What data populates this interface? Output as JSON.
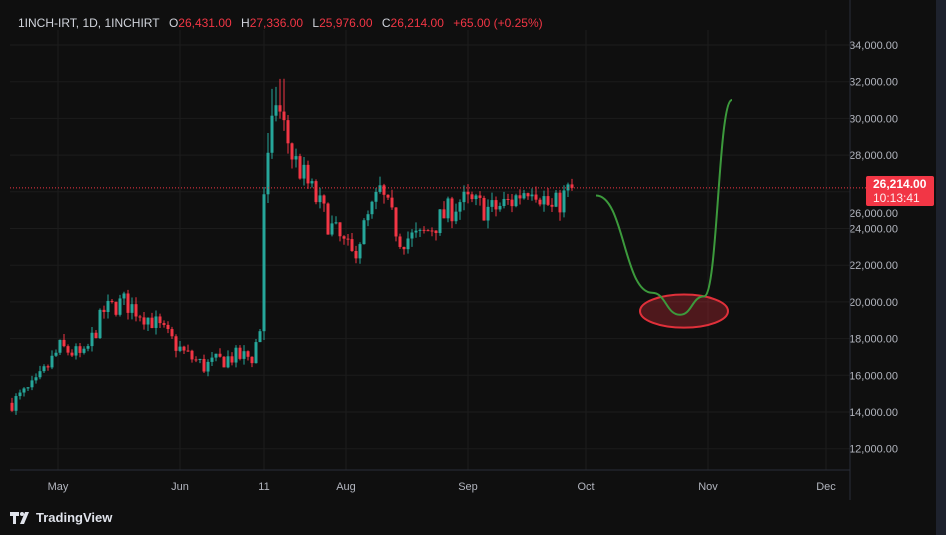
{
  "legend": {
    "symbol": "1INCH-IRT, 1D, 1INCHIRT",
    "open_label": "O",
    "open": "26,431.00",
    "high_label": "H",
    "high": "27,336.00",
    "low_label": "L",
    "low": "25,976.00",
    "close_label": "C",
    "close": "26,214.00",
    "change": "+65.00 (+0.25%)"
  },
  "price_tag": {
    "price": "26,214.00",
    "countdown": "10:13:41"
  },
  "brand": "TradingView",
  "colors": {
    "up": "#26a69a",
    "down": "#f23645",
    "curve": "#3c9a3c",
    "ellipse": "#e0303a"
  },
  "chart_data": {
    "type": "candlestick",
    "y_ticks": [
      "34,000.00",
      "32,000.00",
      "30,000.00",
      "28,000.00",
      "26,000.00",
      "24,000.00",
      "22,000.00",
      "20,000.00",
      "18,000.00",
      "16,000.00",
      "14,000.00",
      "12,000.00"
    ],
    "y_tick_values": [
      34000,
      32000,
      30000,
      28000,
      26000,
      24000,
      22000,
      20000,
      18000,
      16000,
      14000,
      12000
    ],
    "ylim": [
      11000,
      35000
    ],
    "x_ticks": [
      {
        "label": "May",
        "day": 11.5
      },
      {
        "label": "Jun",
        "day": 42
      },
      {
        "label": "11",
        "day": 63
      },
      {
        "label": "Aug",
        "day": 83.5
      },
      {
        "label": "Sep",
        "day": 114
      },
      {
        "label": "Oct",
        "day": 143.5
      },
      {
        "label": "Nov",
        "day": 174
      },
      {
        "label": "Dec",
        "day": 203.5
      }
    ],
    "xlim_days": [
      -0.5,
      209
    ],
    "last_price": 26214,
    "close_keypoints": [
      [
        0,
        14500
      ],
      [
        6,
        15500
      ],
      [
        12,
        17500
      ],
      [
        18,
        17000
      ],
      [
        23,
        19500
      ],
      [
        28,
        20000
      ],
      [
        35,
        19000
      ],
      [
        43,
        17200
      ],
      [
        48,
        16500
      ],
      [
        55,
        17000
      ],
      [
        60,
        17000
      ],
      [
        62,
        18500
      ],
      [
        63,
        26000
      ],
      [
        66,
        31000
      ],
      [
        70,
        28000
      ],
      [
        75,
        26000
      ],
      [
        80,
        24000
      ],
      [
        85,
        22500
      ],
      [
        90,
        25000
      ],
      [
        92,
        26000
      ],
      [
        97,
        23500
      ],
      [
        102,
        23500
      ],
      [
        107,
        24500
      ],
      [
        112,
        25500
      ],
      [
        120,
        25000
      ],
      [
        125,
        25500
      ],
      [
        130,
        26500
      ],
      [
        135,
        25000
      ],
      [
        140,
        26214
      ]
    ],
    "projection_curve": [
      [
        146,
        25800
      ],
      [
        160,
        20500
      ],
      [
        167,
        19300
      ],
      [
        173,
        20300
      ],
      [
        180,
        31000
      ]
    ],
    "highlight_ellipse": {
      "center_day": 168,
      "center_price": 19500,
      "day_radius": 11,
      "price_radius": 900
    }
  }
}
